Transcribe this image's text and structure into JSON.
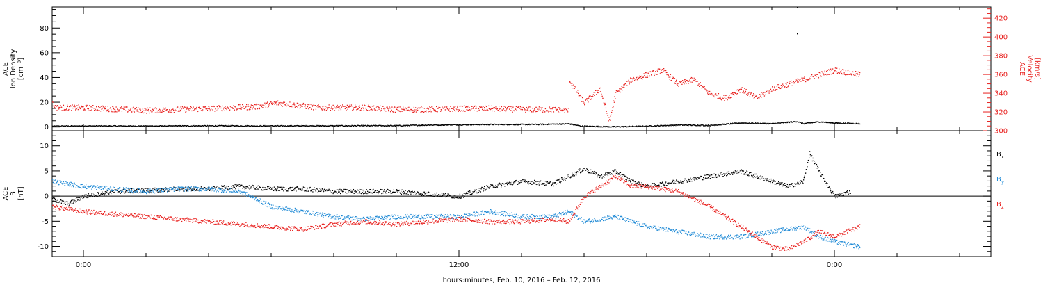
{
  "chart_data": {
    "type": "scatter",
    "xlabel": "hours:minutes, Feb. 10, 2016 – Feb. 12, 2016",
    "x_range_hours": [
      -1,
      29
    ],
    "x_ticks": [
      {
        "hour": 0,
        "label": "0:00"
      },
      {
        "hour": 12,
        "label": "12:00"
      },
      {
        "hour": 24,
        "label": "0:00"
      }
    ],
    "colors": {
      "black": "#000000",
      "red": "#e8201e",
      "blue": "#1f8ad6"
    },
    "panels": [
      {
        "id": "plasma",
        "ylabel_lines": [
          "ACE",
          "Ion Density",
          "[cm⁻³]"
        ],
        "ylim": [
          -3,
          97
        ],
        "yticks": [
          0,
          20,
          40,
          60,
          80
        ],
        "right_axis": {
          "ylabel_lines": [
            "ACE",
            "Velocity",
            "[km/s]"
          ],
          "ylim": [
            300,
            432
          ],
          "yticks": [
            300,
            320,
            340,
            360,
            380,
            400,
            420
          ],
          "color": "#e8201e"
        },
        "series": [
          {
            "name": "Ion Density",
            "axis": "left",
            "color": "#000000",
            "points": [
              [
                -1,
                1
              ],
              [
                0,
                1.2
              ],
              [
                2,
                1.1
              ],
              [
                4,
                1.3
              ],
              [
                6,
                1.2
              ],
              [
                8,
                1.3
              ],
              [
                10,
                1.4
              ],
              [
                11,
                1.9
              ],
              [
                13,
                2.4
              ],
              [
                14.5,
                2.4
              ],
              [
                15.5,
                2.9
              ],
              [
                15.9,
                1
              ],
              [
                17,
                0.5
              ],
              [
                18,
                1
              ],
              [
                19,
                2
              ],
              [
                20,
                1.6
              ],
              [
                21,
                3.6
              ],
              [
                22,
                3
              ],
              [
                22.8,
                4.8
              ],
              [
                23,
                3
              ],
              [
                23.5,
                4.5
              ],
              [
                24,
                3.5
              ],
              [
                24.8,
                3
              ]
            ],
            "spikes": [
              [
                22.8,
                97
              ],
              [
                22.8,
                76
              ]
            ]
          },
          {
            "name": "Velocity",
            "axis": "right",
            "color": "#e8201e",
            "points": [
              [
                -1,
                330
              ],
              [
                -0.9,
                325
              ],
              [
                0,
                325
              ],
              [
                2,
                322
              ],
              [
                4,
                324
              ],
              [
                5.5,
                326
              ],
              [
                6.2,
                330
              ],
              [
                7.5,
                325
              ],
              [
                9,
                325
              ],
              [
                10,
                323
              ],
              [
                11,
                323
              ],
              [
                12,
                324
              ],
              [
                13,
                324
              ],
              [
                14,
                323
              ],
              [
                15,
                323
              ],
              [
                15.5,
                322
              ],
              [
                15.5,
                355
              ],
              [
                16,
                330
              ],
              [
                16.5,
                345
              ],
              [
                16.8,
                310
              ],
              [
                17,
                340
              ],
              [
                17.5,
                355
              ],
              [
                18,
                360
              ],
              [
                18.5,
                365
              ],
              [
                19,
                350
              ],
              [
                19.5,
                355
              ],
              [
                20,
                340
              ],
              [
                20.5,
                335
              ],
              [
                21,
                345
              ],
              [
                21.5,
                335
              ],
              [
                22,
                345
              ],
              [
                22.5,
                350
              ],
              [
                23,
                355
              ],
              [
                23.3,
                358
              ],
              [
                23.5,
                360
              ],
              [
                24,
                365
              ],
              [
                24.8,
                360
              ]
            ]
          }
        ]
      },
      {
        "id": "magnetic",
        "ylabel_lines": [
          "ACE",
          "B",
          "[nT]"
        ],
        "ylim": [
          -12,
          13
        ],
        "yticks": [
          -10,
          -5,
          0,
          5,
          10
        ],
        "legend": [
          {
            "label": "B",
            "sub": "x",
            "color": "#000000"
          },
          {
            "label": "B",
            "sub": "y",
            "color": "#1f8ad6"
          },
          {
            "label": "B",
            "sub": "z",
            "color": "#e8201e"
          }
        ],
        "series": [
          {
            "name": "Bx",
            "color": "#000000",
            "points": [
              [
                -1,
                -0.5
              ],
              [
                -0.5,
                -1.5
              ],
              [
                0,
                0
              ],
              [
                1,
                1
              ],
              [
                2,
                1.2
              ],
              [
                3,
                1.5
              ],
              [
                4,
                1.5
              ],
              [
                5,
                2
              ],
              [
                6,
                1.5
              ],
              [
                7,
                1.5
              ],
              [
                8,
                1
              ],
              [
                9,
                1
              ],
              [
                10,
                1
              ],
              [
                11,
                0.5
              ],
              [
                12,
                0
              ],
              [
                13,
                2
              ],
              [
                14,
                3
              ],
              [
                15,
                2.5
              ],
              [
                15.5,
                4
              ],
              [
                16,
                5.5
              ],
              [
                16.5,
                4
              ],
              [
                17,
                5
              ],
              [
                17.5,
                3
              ],
              [
                18,
                2
              ],
              [
                19,
                3
              ],
              [
                20,
                4
              ],
              [
                21,
                5
              ],
              [
                22,
                3
              ],
              [
                22.5,
                2
              ],
              [
                23,
                3
              ],
              [
                23.2,
                8.5
              ],
              [
                23.5,
                5
              ],
              [
                24,
                0
              ],
              [
                24.5,
                1
              ]
            ]
          },
          {
            "name": "By",
            "color": "#1f8ad6",
            "points": [
              [
                -1,
                3
              ],
              [
                0,
                2
              ],
              [
                1,
                1.5
              ],
              [
                2,
                1
              ],
              [
                3,
                1.5
              ],
              [
                4,
                1.5
              ],
              [
                5,
                1
              ],
              [
                6,
                -2
              ],
              [
                7,
                -3
              ],
              [
                8,
                -4
              ],
              [
                9,
                -4.5
              ],
              [
                10,
                -4
              ],
              [
                11,
                -4
              ],
              [
                12,
                -4
              ],
              [
                13,
                -3
              ],
              [
                14,
                -4
              ],
              [
                15,
                -4
              ],
              [
                15.5,
                -3
              ],
              [
                16,
                -5
              ],
              [
                17,
                -4
              ],
              [
                18,
                -6
              ],
              [
                19,
                -7
              ],
              [
                20,
                -8
              ],
              [
                21,
                -8
              ],
              [
                22,
                -7
              ],
              [
                23,
                -6
              ],
              [
                23.5,
                -8
              ],
              [
                24,
                -9
              ],
              [
                24.8,
                -10
              ]
            ]
          },
          {
            "name": "Bz",
            "color": "#e8201e",
            "points": [
              [
                -1,
                -2
              ],
              [
                0,
                -3
              ],
              [
                1,
                -3.5
              ],
              [
                2,
                -4
              ],
              [
                3,
                -4.5
              ],
              [
                4,
                -5
              ],
              [
                5,
                -5.5
              ],
              [
                6,
                -6
              ],
              [
                7,
                -6.5
              ],
              [
                8,
                -5.5
              ],
              [
                9,
                -5
              ],
              [
                10,
                -5.5
              ],
              [
                11,
                -5
              ],
              [
                12,
                -4.5
              ],
              [
                13,
                -5
              ],
              [
                14,
                -5
              ],
              [
                15,
                -4.5
              ],
              [
                15.5,
                -5
              ],
              [
                16,
                0
              ],
              [
                17,
                4
              ],
              [
                17.5,
                2
              ],
              [
                18,
                2
              ],
              [
                19,
                1
              ],
              [
                20,
                -2
              ],
              [
                21,
                -6
              ],
              [
                22,
                -10
              ],
              [
                22.5,
                -10.5
              ],
              [
                23,
                -9
              ],
              [
                23.5,
                -7
              ],
              [
                24,
                -8
              ],
              [
                24.8,
                -6
              ]
            ]
          }
        ]
      }
    ]
  }
}
